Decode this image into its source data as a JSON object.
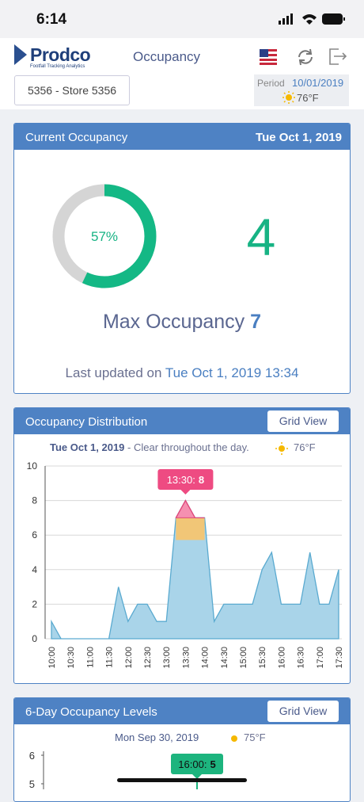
{
  "status_bar": {
    "time": "6:14"
  },
  "header": {
    "logo": "Prodco",
    "tagline": "Footfall Tracking Analytics",
    "title": "Occupancy"
  },
  "store": {
    "selector": "5356 - Store 5356",
    "period_label": "Period",
    "period": "10/01/2019",
    "temperature": "76°F"
  },
  "current_occupancy": {
    "title": "Current Occupancy",
    "date": "Tue Oct 1, 2019",
    "percent": 57,
    "percent_label": "57%",
    "count": 4,
    "max_label": "Max Occupancy",
    "max": 7,
    "updated_label": "Last updated on",
    "updated": "Tue Oct 1, 2019 13:34"
  },
  "distribution": {
    "title": "Occupancy Distribution",
    "button": "Grid View",
    "date": "Tue Oct 1, 2019",
    "summary": " - Clear throughout the day.",
    "temperature": "76°F",
    "chart_data": {
      "type": "area",
      "categories": [
        "10:00",
        null,
        "10:30",
        null,
        "11:00",
        null,
        "11:30",
        null,
        "12:00",
        null,
        "12:30",
        null,
        "13:00",
        null,
        "13:30",
        null,
        "14:00",
        null,
        "14:30",
        null,
        "15:00",
        null,
        "15:30",
        null,
        "16:00",
        null,
        "16:30",
        null,
        "17:00",
        null,
        "17:30"
      ],
      "values": [
        1,
        0,
        0,
        0,
        0,
        0,
        0,
        3,
        1,
        2,
        2,
        1,
        1,
        7,
        8,
        7,
        7,
        1,
        2,
        2,
        2,
        2,
        4,
        5,
        2,
        2,
        2,
        5,
        2,
        2,
        4
      ],
      "color": "#a9d4e9",
      "ylim": [
        0,
        10
      ],
      "yticks": [
        0,
        2,
        4,
        6,
        8,
        10
      ],
      "grid": true,
      "tooltip": {
        "time": "13:30:",
        "value": 8
      }
    }
  },
  "six_day": {
    "title": "6-Day Occupancy Levels",
    "button": "Grid View",
    "date": "Mon Sep 30, 2019",
    "temperature": "75°F",
    "chart_data": {
      "type": "area",
      "ylim": [
        0,
        6
      ],
      "yticks": [
        5,
        6
      ],
      "tooltip": {
        "time": "16:00:",
        "value": 5
      }
    }
  }
}
